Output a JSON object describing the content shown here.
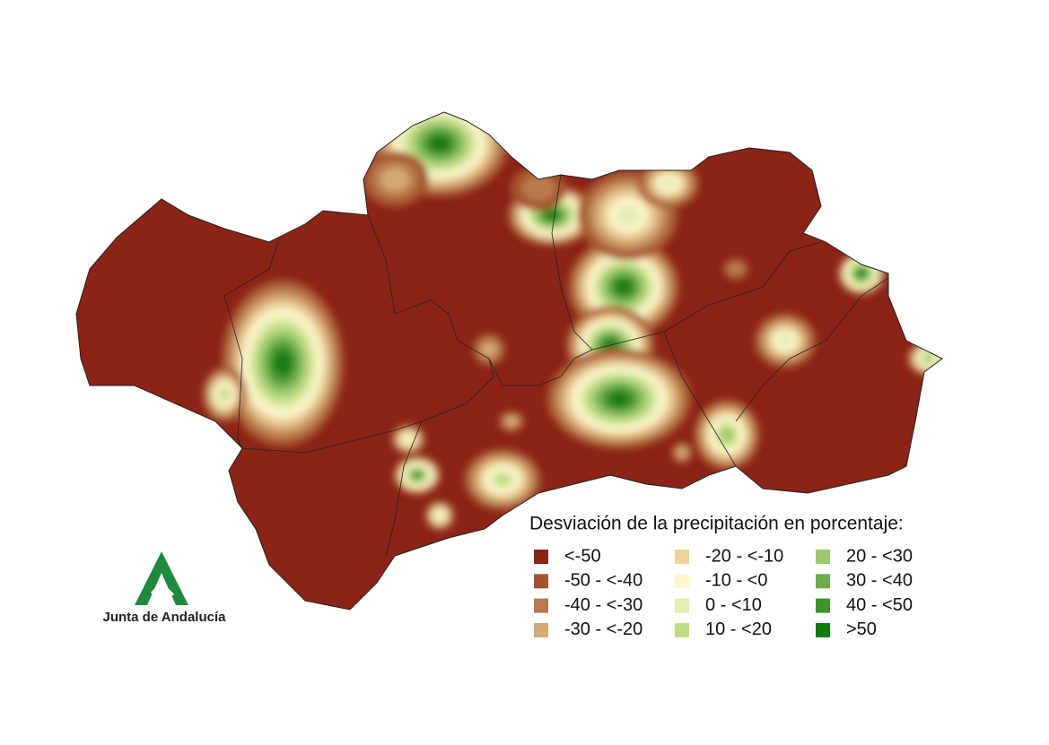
{
  "legend": {
    "title": "Desviación de la precipitación en porcentaje:",
    "items": [
      {
        "label": "<-50",
        "color": "#8b2316"
      },
      {
        "label": "-50 - <-40",
        "color": "#a5522e"
      },
      {
        "label": "-40 - <-30",
        "color": "#b97a4c"
      },
      {
        "label": "-30 - <-20",
        "color": "#d4a877"
      },
      {
        "label": "-20 - <-10",
        "color": "#ecd49c"
      },
      {
        "label": "-10 - <0",
        "color": "#fbf6cc"
      },
      {
        "label": "0 - <10",
        "color": "#e6edb0"
      },
      {
        "label": "10 - <20",
        "color": "#c2dc85"
      },
      {
        "label": "20 - <30",
        "color": "#9bc870"
      },
      {
        "label": "30 - <40",
        "color": "#6cad4a"
      },
      {
        "label": "40 - <50",
        "color": "#3f922c"
      },
      {
        "label": ">50",
        "color": "#137a12"
      }
    ]
  },
  "logo": {
    "text": "Junta de Andalucía"
  }
}
